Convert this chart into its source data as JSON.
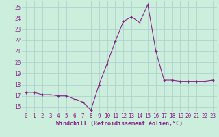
{
  "x": [
    0,
    1,
    2,
    3,
    4,
    5,
    6,
    7,
    8,
    9,
    10,
    11,
    12,
    13,
    14,
    15,
    16,
    17,
    18,
    19,
    20,
    21,
    22,
    23
  ],
  "y": [
    17.3,
    17.3,
    17.1,
    17.1,
    17.0,
    17.0,
    16.7,
    16.4,
    15.7,
    18.0,
    19.9,
    21.9,
    23.7,
    24.1,
    23.6,
    25.2,
    21.0,
    18.4,
    18.4,
    18.3,
    18.3,
    18.3,
    18.3,
    18.4
  ],
  "line_color": "#882288",
  "marker": "+",
  "bg_color": "#cceedd",
  "grid_color": "#aacccc",
  "xlabel": "Windchill (Refroidissement éolien,°C)",
  "xlim": [
    -0.5,
    23.5
  ],
  "ylim": [
    15.5,
    25.5
  ],
  "yticks": [
    16,
    17,
    18,
    19,
    20,
    21,
    22,
    23,
    24,
    25
  ],
  "xticks": [
    0,
    1,
    2,
    3,
    4,
    5,
    6,
    7,
    8,
    9,
    10,
    11,
    12,
    13,
    14,
    15,
    16,
    17,
    18,
    19,
    20,
    21,
    22,
    23
  ],
  "label_fontsize": 6.0,
  "tick_fontsize": 5.5
}
